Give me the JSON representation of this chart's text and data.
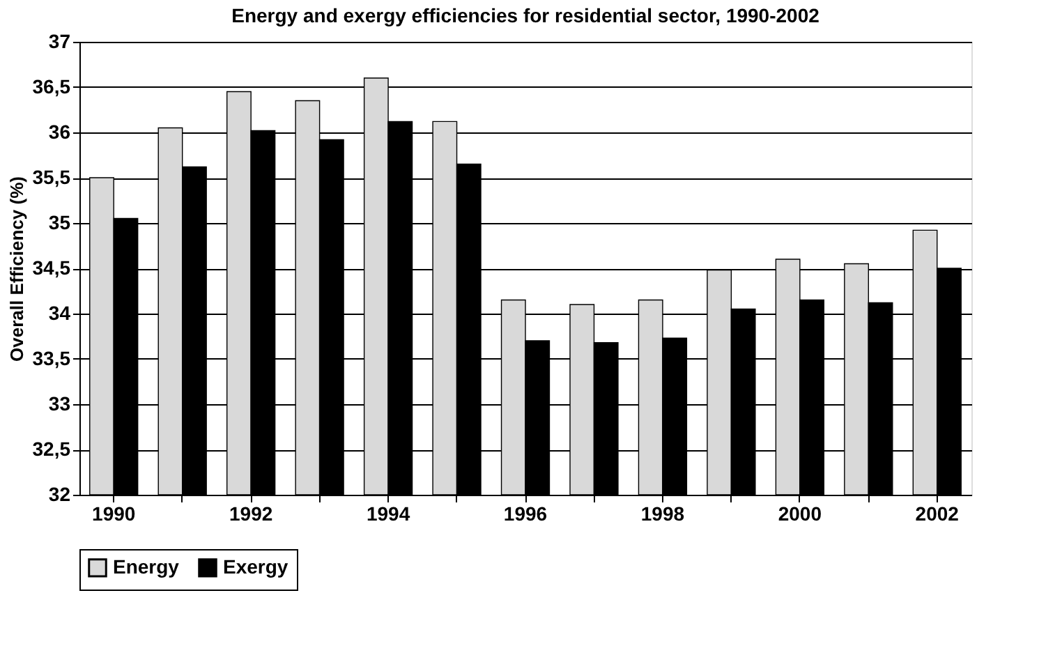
{
  "chart_data": {
    "type": "bar",
    "title": "Energy and exergy efficiencies for residential sector, 1990-2002",
    "ylabel": "Overall Efficiency (%)",
    "categories": [
      "1990",
      null,
      "1992",
      null,
      "1994",
      null,
      "1996",
      null,
      "1998",
      null,
      "2000",
      null,
      "2002"
    ],
    "series": [
      {
        "name": "Energy",
        "color": "#d9d9d9",
        "values": [
          35.5,
          36.05,
          36.45,
          36.35,
          36.6,
          36.12,
          34.15,
          34.1,
          34.15,
          34.48,
          34.6,
          34.55,
          34.92
        ]
      },
      {
        "name": "Exergy",
        "color": "#000000",
        "values": [
          35.05,
          35.62,
          36.02,
          35.92,
          36.12,
          35.65,
          33.7,
          33.68,
          33.73,
          34.05,
          34.15,
          34.12,
          34.5
        ]
      }
    ],
    "ylim": [
      32,
      37
    ],
    "yticks": [
      32,
      {
        "value": 32.5,
        "label": "32,5"
      },
      33,
      {
        "value": 33.5,
        "label": "33,5"
      },
      34,
      {
        "value": 34.5,
        "label": "34,5"
      },
      35,
      {
        "value": 35.5,
        "label": "35,5"
      },
      36,
      {
        "value": 36.5,
        "label": "36,5"
      },
      37
    ],
    "grid": "y",
    "legend": "bottom"
  }
}
